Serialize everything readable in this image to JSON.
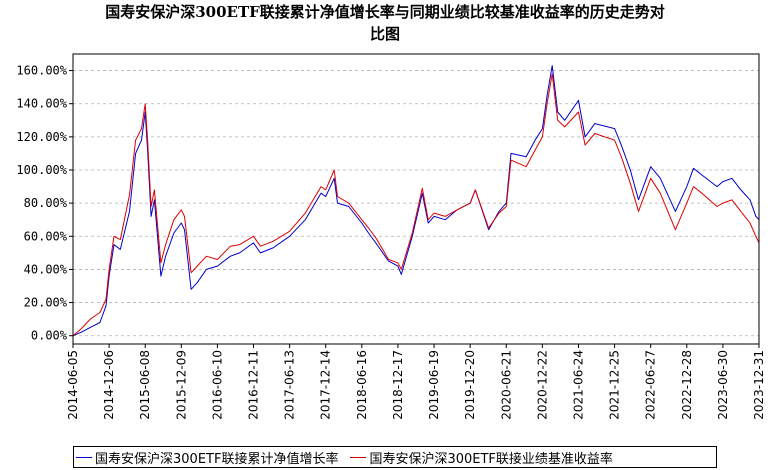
{
  "chart_data": {
    "type": "line",
    "title_line1": "国寿安保沪深300ETF联接累计净值增长率与同期业绩比较基准收益率的历史走势对",
    "title_line2": "比图",
    "ylim": [
      -5,
      170
    ],
    "yticks": [
      0,
      20,
      40,
      60,
      80,
      100,
      120,
      140,
      160
    ],
    "ytick_labels": [
      "0.00%",
      "20.00%",
      "40.00%",
      "60.00%",
      "80.00%",
      "100.00%",
      "120.00%",
      "140.00%",
      "160.00%"
    ],
    "xlim": [
      "2014-06-05",
      "2023-12-31"
    ],
    "xtick_labels": [
      "2014-06-05",
      "2014-12-06",
      "2015-06-08",
      "2015-12-09",
      "2016-06-10",
      "2016-12-11",
      "2017-06-13",
      "2017-12-14",
      "2018-06-16",
      "2018-12-17",
      "2019-06-19",
      "2019-12-20",
      "2020-06-21",
      "2020-12-22",
      "2021-06-24",
      "2021-12-25",
      "2022-06-27",
      "2022-12-28",
      "2023-06-30",
      "2023-12-31"
    ],
    "grid": true,
    "legend_position": "bottom",
    "series": [
      {
        "name": "国寿安保沪深300ETF联接累计净值增长率",
        "color": "#0000cc",
        "points": [
          [
            "2014-06-05",
            0
          ],
          [
            "2014-07-15",
            2
          ],
          [
            "2014-09-01",
            5
          ],
          [
            "2014-10-20",
            8
          ],
          [
            "2014-11-20",
            18
          ],
          [
            "2014-12-06",
            36
          ],
          [
            "2014-12-31",
            55
          ],
          [
            "2015-02-01",
            52
          ],
          [
            "2015-03-20",
            75
          ],
          [
            "2015-04-20",
            110
          ],
          [
            "2015-05-20",
            118
          ],
          [
            "2015-06-08",
            135
          ],
          [
            "2015-06-20",
            112
          ],
          [
            "2015-07-08",
            72
          ],
          [
            "2015-07-25",
            82
          ],
          [
            "2015-08-27",
            36
          ],
          [
            "2015-09-20",
            48
          ],
          [
            "2015-11-01",
            62
          ],
          [
            "2015-12-09",
            68
          ],
          [
            "2015-12-25",
            64
          ],
          [
            "2016-01-28",
            28
          ],
          [
            "2016-02-28",
            32
          ],
          [
            "2016-04-15",
            40
          ],
          [
            "2016-06-10",
            42
          ],
          [
            "2016-08-15",
            48
          ],
          [
            "2016-10-01",
            50
          ],
          [
            "2016-12-11",
            56
          ],
          [
            "2017-01-15",
            50
          ],
          [
            "2017-03-20",
            53
          ],
          [
            "2017-06-13",
            60
          ],
          [
            "2017-09-01",
            70
          ],
          [
            "2017-11-20",
            86
          ],
          [
            "2017-12-14",
            84
          ],
          [
            "2018-01-26",
            95
          ],
          [
            "2018-02-12",
            80
          ],
          [
            "2018-04-10",
            78
          ],
          [
            "2018-06-16",
            68
          ],
          [
            "2018-07-20",
            62
          ],
          [
            "2018-09-01",
            55
          ],
          [
            "2018-10-30",
            45
          ],
          [
            "2018-12-17",
            42
          ],
          [
            "2019-01-03",
            37
          ],
          [
            "2019-02-28",
            60
          ],
          [
            "2019-04-20",
            86
          ],
          [
            "2019-05-20",
            68
          ],
          [
            "2019-06-19",
            72
          ],
          [
            "2019-08-15",
            70
          ],
          [
            "2019-10-15",
            76
          ],
          [
            "2019-12-20",
            80
          ],
          [
            "2020-01-15",
            88
          ],
          [
            "2020-03-23",
            64
          ],
          [
            "2020-05-15",
            75
          ],
          [
            "2020-06-21",
            80
          ],
          [
            "2020-07-15",
            110
          ],
          [
            "2020-09-30",
            108
          ],
          [
            "2020-11-15",
            118
          ],
          [
            "2020-12-22",
            125
          ],
          [
            "2021-01-15",
            145
          ],
          [
            "2021-02-10",
            163
          ],
          [
            "2021-03-10",
            135
          ],
          [
            "2021-04-15",
            130
          ],
          [
            "2021-06-24",
            142
          ],
          [
            "2021-07-28",
            120
          ],
          [
            "2021-09-15",
            128
          ],
          [
            "2021-12-25",
            125
          ],
          [
            "2022-01-28",
            115
          ],
          [
            "2022-03-15",
            100
          ],
          [
            "2022-04-26",
            82
          ],
          [
            "2022-06-27",
            102
          ],
          [
            "2022-08-15",
            95
          ],
          [
            "2022-10-31",
            75
          ],
          [
            "2022-12-28",
            90
          ],
          [
            "2023-01-31",
            101
          ],
          [
            "2023-03-15",
            97
          ],
          [
            "2023-05-31",
            90
          ],
          [
            "2023-06-30",
            93
          ],
          [
            "2023-08-15",
            95
          ],
          [
            "2023-09-30",
            88
          ],
          [
            "2023-11-15",
            82
          ],
          [
            "2023-12-15",
            72
          ],
          [
            "2023-12-31",
            70
          ]
        ]
      },
      {
        "name": "国寿安保沪深300ETF联接业绩基准收益率",
        "color": "#dd0000",
        "points": [
          [
            "2014-06-05",
            0
          ],
          [
            "2014-07-15",
            4
          ],
          [
            "2014-09-01",
            10
          ],
          [
            "2014-10-20",
            14
          ],
          [
            "2014-11-20",
            22
          ],
          [
            "2014-12-06",
            40
          ],
          [
            "2014-12-31",
            60
          ],
          [
            "2015-02-01",
            58
          ],
          [
            "2015-03-20",
            85
          ],
          [
            "2015-04-20",
            118
          ],
          [
            "2015-05-20",
            125
          ],
          [
            "2015-06-08",
            140
          ],
          [
            "2015-06-20",
            118
          ],
          [
            "2015-07-08",
            78
          ],
          [
            "2015-07-25",
            88
          ],
          [
            "2015-08-27",
            44
          ],
          [
            "2015-09-20",
            55
          ],
          [
            "2015-11-01",
            70
          ],
          [
            "2015-12-09",
            76
          ],
          [
            "2015-12-25",
            72
          ],
          [
            "2016-01-28",
            38
          ],
          [
            "2016-02-28",
            42
          ],
          [
            "2016-04-15",
            48
          ],
          [
            "2016-06-10",
            46
          ],
          [
            "2016-08-15",
            54
          ],
          [
            "2016-10-01",
            55
          ],
          [
            "2016-12-11",
            60
          ],
          [
            "2017-01-15",
            54
          ],
          [
            "2017-03-20",
            57
          ],
          [
            "2017-06-13",
            63
          ],
          [
            "2017-09-01",
            74
          ],
          [
            "2017-11-20",
            90
          ],
          [
            "2017-12-14",
            88
          ],
          [
            "2018-01-26",
            100
          ],
          [
            "2018-02-12",
            84
          ],
          [
            "2018-04-10",
            80
          ],
          [
            "2018-06-16",
            70
          ],
          [
            "2018-07-20",
            65
          ],
          [
            "2018-09-01",
            58
          ],
          [
            "2018-10-30",
            46
          ],
          [
            "2018-12-17",
            44
          ],
          [
            "2019-01-03",
            40
          ],
          [
            "2019-02-28",
            62
          ],
          [
            "2019-04-20",
            89
          ],
          [
            "2019-05-20",
            70
          ],
          [
            "2019-06-19",
            74
          ],
          [
            "2019-08-15",
            72
          ],
          [
            "2019-10-15",
            76
          ],
          [
            "2019-12-20",
            80
          ],
          [
            "2020-01-15",
            88
          ],
          [
            "2020-03-23",
            65
          ],
          [
            "2020-05-15",
            74
          ],
          [
            "2020-06-21",
            78
          ],
          [
            "2020-07-15",
            106
          ],
          [
            "2020-09-30",
            102
          ],
          [
            "2020-11-15",
            112
          ],
          [
            "2020-12-22",
            120
          ],
          [
            "2021-01-15",
            140
          ],
          [
            "2021-02-10",
            158
          ],
          [
            "2021-03-10",
            130
          ],
          [
            "2021-04-15",
            126
          ],
          [
            "2021-06-24",
            135
          ],
          [
            "2021-07-28",
            115
          ],
          [
            "2021-09-15",
            122
          ],
          [
            "2021-12-25",
            118
          ],
          [
            "2022-01-28",
            108
          ],
          [
            "2022-03-15",
            92
          ],
          [
            "2022-04-26",
            75
          ],
          [
            "2022-06-27",
            95
          ],
          [
            "2022-08-15",
            86
          ],
          [
            "2022-10-31",
            64
          ],
          [
            "2022-12-28",
            80
          ],
          [
            "2023-01-31",
            90
          ],
          [
            "2023-03-15",
            86
          ],
          [
            "2023-05-31",
            78
          ],
          [
            "2023-06-30",
            80
          ],
          [
            "2023-08-15",
            82
          ],
          [
            "2023-09-30",
            75
          ],
          [
            "2023-11-15",
            68
          ],
          [
            "2023-12-15",
            60
          ],
          [
            "2023-12-31",
            56
          ]
        ]
      }
    ]
  }
}
